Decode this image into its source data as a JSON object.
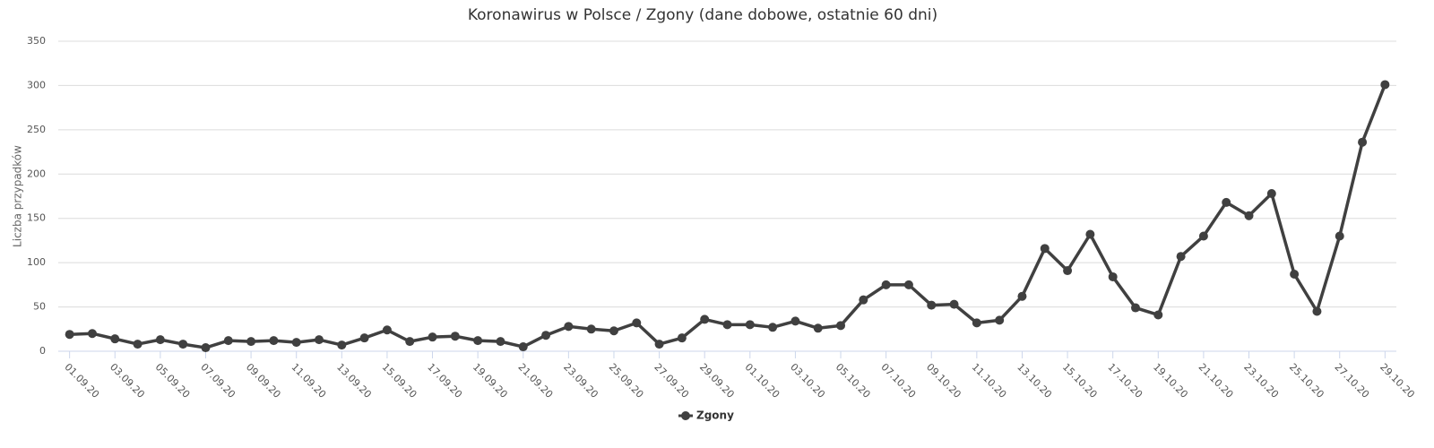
{
  "chart_data": {
    "type": "line",
    "title": "Koronawirus w Polsce / Zgony (dane dobowe, ostatnie 60 dni)",
    "y_label": "Liczba przypadków",
    "categories": [
      "01.09.20",
      null,
      "03.09.20",
      null,
      "05.09.20",
      null,
      "07.09.20",
      null,
      "09.09.20",
      null,
      "11.09.20",
      null,
      "13.09.20",
      null,
      "15.09.20",
      null,
      "17.09.20",
      null,
      "19.09.20",
      null,
      "21.09.20",
      null,
      "23.09.20",
      null,
      "25.09.20",
      null,
      "27.09.20",
      null,
      "29.09.20",
      null,
      "01.10.20",
      null,
      "03.10.20",
      null,
      "05.10.20",
      null,
      "07.10.20",
      null,
      "09.10.20",
      null,
      "11.10.20",
      null,
      "13.10.20",
      null,
      "15.10.20",
      null,
      "17.10.20",
      null,
      "19.10.20",
      null,
      "21.10.20",
      null,
      "23.10.20",
      null,
      "25.10.20",
      null,
      "27.10.20",
      null,
      "29.10.20"
    ],
    "series": [
      {
        "name": "Zgony",
        "color": "#404040",
        "values": [
          19,
          20,
          14,
          8,
          13,
          8,
          4,
          12,
          11,
          12,
          10,
          13,
          7,
          15,
          24,
          11,
          16,
          17,
          12,
          11,
          5,
          18,
          28,
          25,
          23,
          32,
          8,
          15,
          36,
          30,
          30,
          27,
          34,
          26,
          29,
          58,
          75,
          75,
          52,
          53,
          32,
          35,
          62,
          116,
          91,
          132,
          84,
          49,
          41,
          107,
          130,
          168,
          153,
          178,
          87,
          45,
          130,
          236,
          301
        ]
      }
    ],
    "ylim": [
      0,
      350
    ],
    "yticks": [
      0,
      50,
      100,
      150,
      200,
      250,
      300,
      350
    ],
    "grid": true,
    "legend": "bottom"
  }
}
